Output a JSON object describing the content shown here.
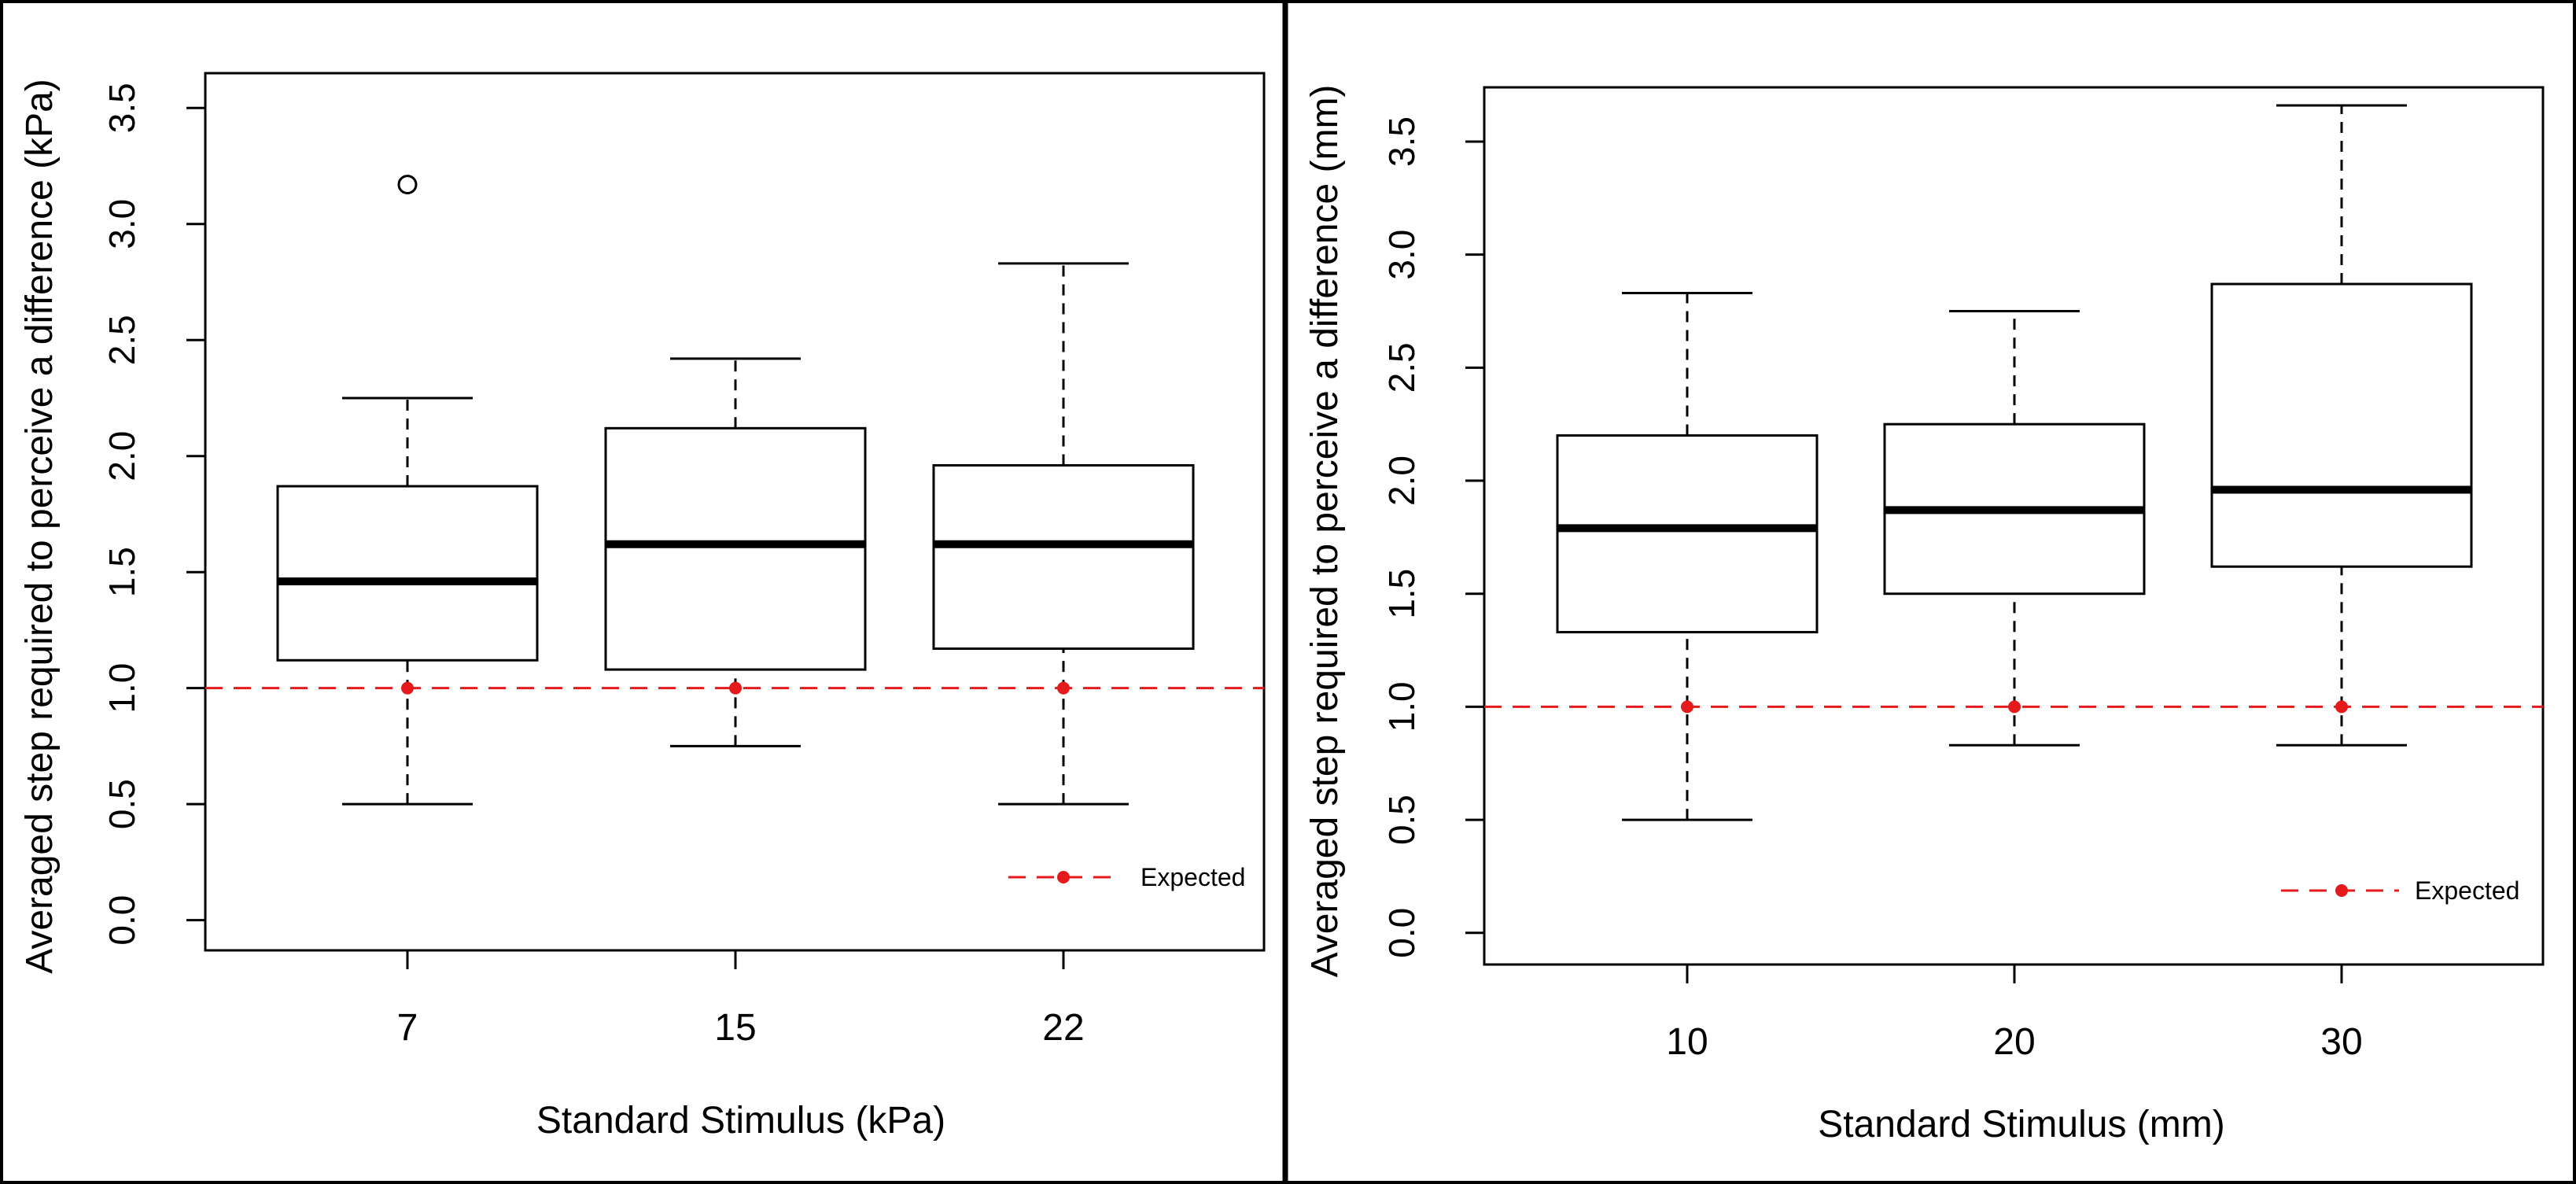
{
  "chart_data": [
    {
      "type": "box",
      "xlabel": "Standard Stimulus (kPa)",
      "ylabel": "Averaged step required to perceive a difference (kPa)",
      "categories": [
        "7",
        "15",
        "22"
      ],
      "yticks": [
        "0.0",
        "0.5",
        "1.0",
        "1.5",
        "2.0",
        "2.5",
        "3.0",
        "3.5"
      ],
      "ylim": [
        -0.13,
        3.65
      ],
      "boxes": [
        {
          "category": "7",
          "whisker_low": 0.5,
          "q1": 1.12,
          "median": 1.46,
          "q3": 1.87,
          "whisker_high": 2.25,
          "outliers": [
            3.17
          ]
        },
        {
          "category": "15",
          "whisker_low": 0.75,
          "q1": 1.08,
          "median": 1.62,
          "q3": 2.12,
          "whisker_high": 2.42,
          "outliers": []
        },
        {
          "category": "22",
          "whisker_low": 0.5,
          "q1": 1.17,
          "median": 1.62,
          "q3": 1.96,
          "whisker_high": 2.83,
          "outliers": []
        }
      ],
      "reference_line": {
        "y": 1.0,
        "style": "dashed",
        "color": "#e41a1c"
      },
      "expected_points": [
        1.0,
        1.0,
        1.0
      ],
      "legend": {
        "label": "Expected",
        "position": "bottom-right"
      }
    },
    {
      "type": "box",
      "xlabel": "Standard Stimulus (mm)",
      "ylabel": "Averaged step required to perceive a difference (mm)",
      "categories": [
        "10",
        "20",
        "30"
      ],
      "yticks": [
        "0.0",
        "0.5",
        "1.0",
        "1.5",
        "2.0",
        "2.5",
        "3.0",
        "3.5"
      ],
      "ylim": [
        -0.14,
        3.74
      ],
      "boxes": [
        {
          "category": "10",
          "whisker_low": 0.5,
          "q1": 1.33,
          "median": 1.79,
          "q3": 2.2,
          "whisker_high": 2.83,
          "outliers": []
        },
        {
          "category": "20",
          "whisker_low": 0.83,
          "q1": 1.5,
          "median": 1.87,
          "q3": 2.25,
          "whisker_high": 2.75,
          "outliers": []
        },
        {
          "category": "30",
          "whisker_low": 0.83,
          "q1": 1.62,
          "median": 1.96,
          "q3": 2.87,
          "whisker_high": 3.66,
          "outliers": []
        }
      ],
      "reference_line": {
        "y": 1.0,
        "style": "dashed",
        "color": "#e41a1c"
      },
      "expected_points": [
        1.0,
        1.0,
        1.0
      ],
      "legend": {
        "label": "Expected",
        "position": "bottom-right"
      }
    }
  ],
  "colors": {
    "expected": "#e41a1c",
    "box": "#000000",
    "background": "#ffffff"
  }
}
